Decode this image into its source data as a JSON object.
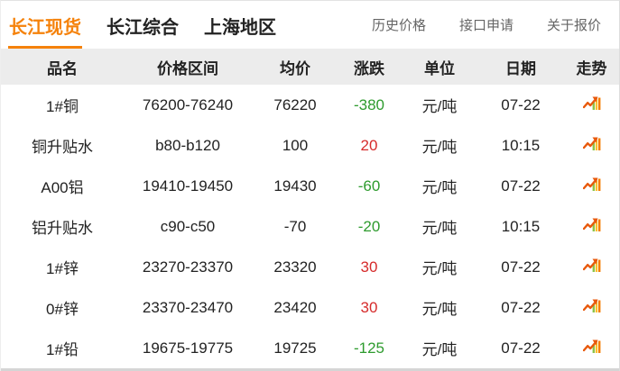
{
  "nav": {
    "tabs": [
      {
        "label": "长江现货",
        "active": true
      },
      {
        "label": "长江综合",
        "active": false
      },
      {
        "label": "上海地区",
        "active": false
      }
    ],
    "links": [
      "历史价格",
      "接口申请",
      "关于报价"
    ]
  },
  "table": {
    "headers": [
      "品名",
      "价格区间",
      "均价",
      "涨跌",
      "单位",
      "日期",
      "走势"
    ],
    "trend_icon": "trend-chart-icon",
    "rows": [
      {
        "name": "1#铜",
        "range": "76200-76240",
        "avg": "76220",
        "change": "-380",
        "unit": "元/吨",
        "date": "07-22"
      },
      {
        "name": "铜升贴水",
        "range": "b80-b120",
        "avg": "100",
        "change": "20",
        "unit": "元/吨",
        "date": "10:15"
      },
      {
        "name": "A00铝",
        "range": "19410-19450",
        "avg": "19430",
        "change": "-60",
        "unit": "元/吨",
        "date": "07-22"
      },
      {
        "name": "铝升贴水",
        "range": "c90-c50",
        "avg": "-70",
        "change": "-20",
        "unit": "元/吨",
        "date": "10:15"
      },
      {
        "name": "1#锌",
        "range": "23270-23370",
        "avg": "23320",
        "change": "30",
        "unit": "元/吨",
        "date": "07-22"
      },
      {
        "name": "0#锌",
        "range": "23370-23470",
        "avg": "23420",
        "change": "30",
        "unit": "元/吨",
        "date": "07-22"
      },
      {
        "name": "1#铅",
        "range": "19675-19775",
        "avg": "19725",
        "change": "-125",
        "unit": "元/吨",
        "date": "07-22"
      }
    ]
  },
  "colors": {
    "accent": "#f5820b",
    "up": "#d62b2b",
    "down": "#2e9b2e",
    "header_bg": "#ececec"
  }
}
